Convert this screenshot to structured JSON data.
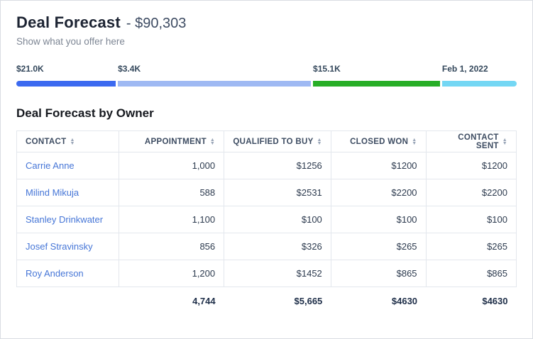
{
  "header": {
    "title": "Deal Forecast",
    "amount": "- $90,303",
    "subtitle": "Show what you offer here"
  },
  "forecast_bar": {
    "segments": [
      {
        "label": "$21.0K",
        "color": "#3c6af0",
        "width_pct": 20.3
      },
      {
        "label": "$3.4K",
        "color": "#9fb9f3",
        "width_pct": 39.0
      },
      {
        "label": "$15.1K",
        "color": "#28ae27",
        "width_pct": 25.8
      },
      {
        "label": "Feb 1, 2022",
        "color": "#74d7f4",
        "width_pct": 14.9
      }
    ]
  },
  "table": {
    "section_title": "Deal Forecast by Owner",
    "columns": [
      {
        "label": "CONTACT"
      },
      {
        "label": "APPOINTMENT"
      },
      {
        "label": "QUALIFIED TO BUY"
      },
      {
        "label": "CLOSED WON"
      },
      {
        "label": "CONTACT SENT"
      }
    ],
    "rows": [
      {
        "contact": "Carrie Anne",
        "appointment": "1,000",
        "qualified_to_buy": "$1256",
        "closed_won": "$1200",
        "contact_sent": "$1200"
      },
      {
        "contact": "Milind Mikuja",
        "appointment": "588",
        "qualified_to_buy": "$2531",
        "closed_won": "$2200",
        "contact_sent": "$2200"
      },
      {
        "contact": "Stanley Drinkwater",
        "appointment": "1,100",
        "qualified_to_buy": "$100",
        "closed_won": "$100",
        "contact_sent": "$100"
      },
      {
        "contact": "Josef Stravinsky",
        "appointment": "856",
        "qualified_to_buy": "$326",
        "closed_won": "$265",
        "contact_sent": "$265"
      },
      {
        "contact": "Roy Anderson",
        "appointment": "1,200",
        "qualified_to_buy": "$1452",
        "closed_won": "$865",
        "contact_sent": "$865"
      }
    ],
    "totals": {
      "appointment": "4,744",
      "qualified_to_buy": "$5,665",
      "closed_won": "$4630",
      "contact_sent": "$4630"
    }
  },
  "colors": {
    "link": "#4676d7",
    "heading": "#1d2433",
    "border": "#e3e7ed"
  }
}
